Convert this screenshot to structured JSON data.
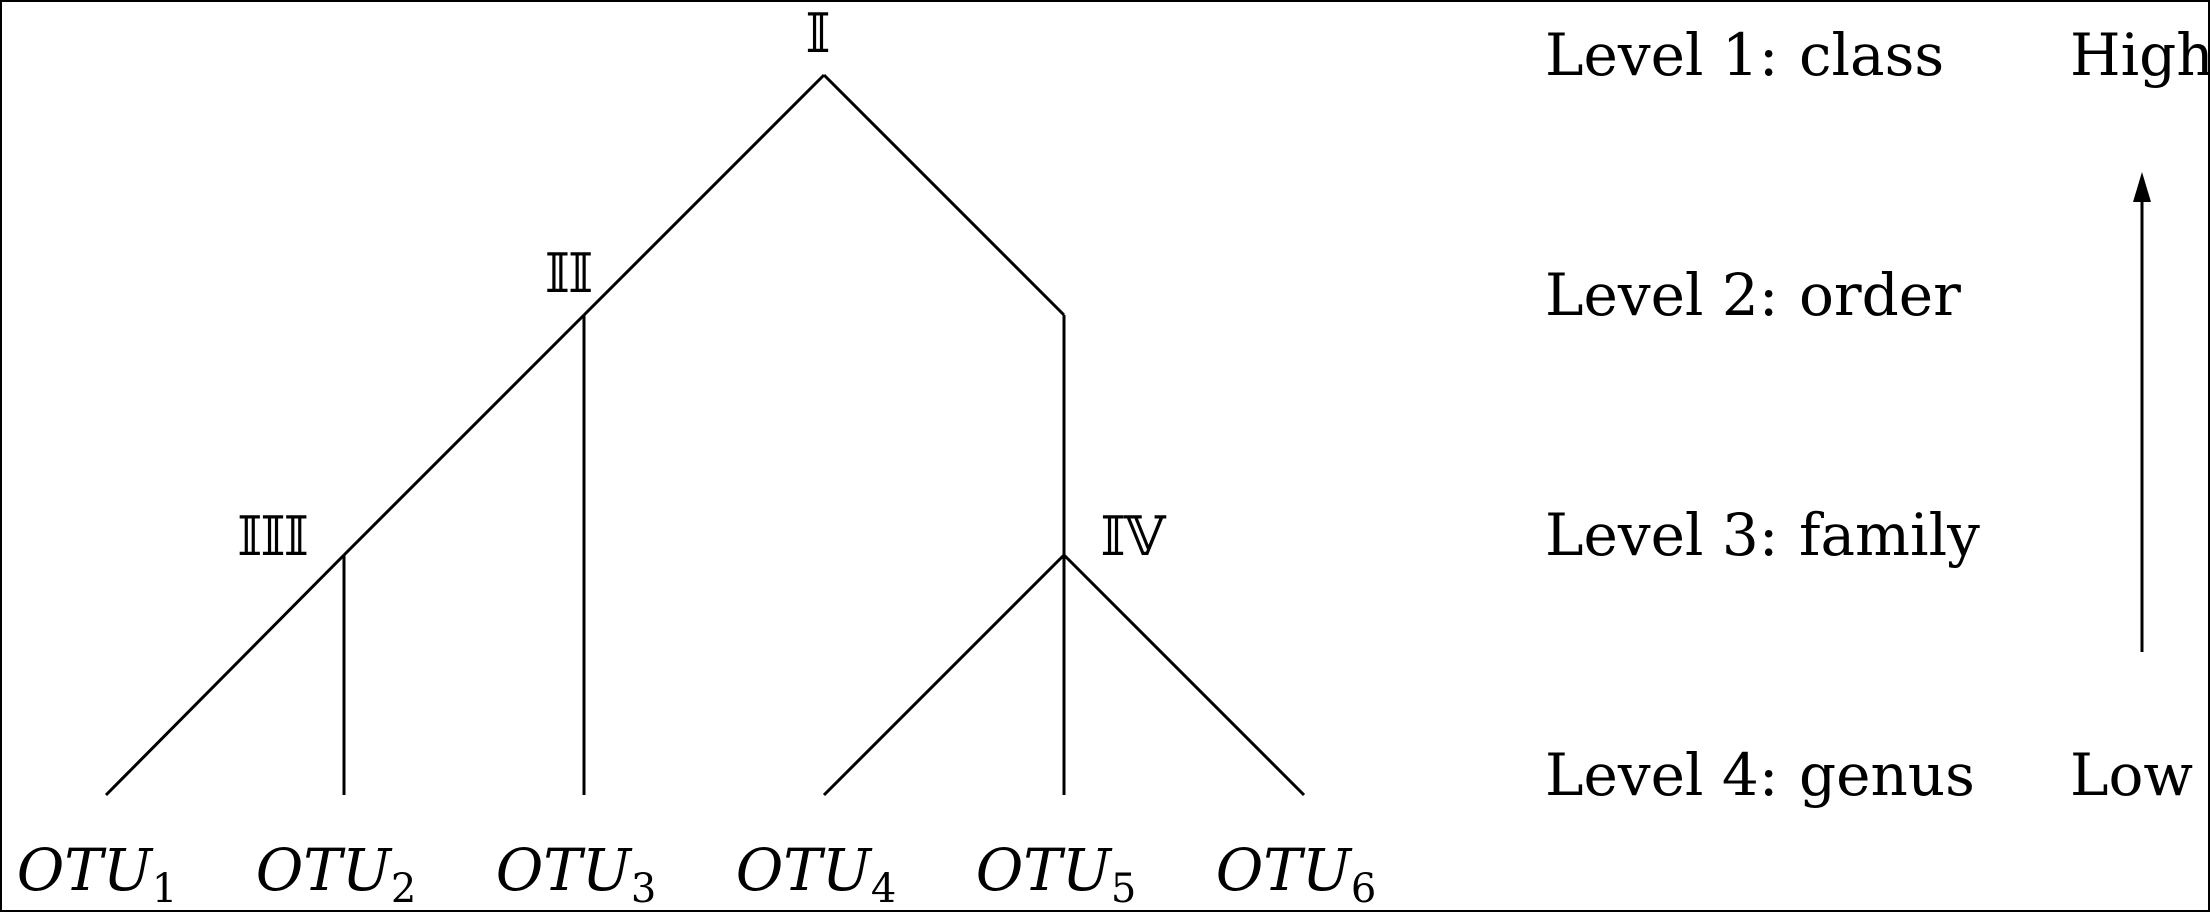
{
  "diagram": {
    "nodes": [
      {
        "id": "I",
        "label": "𝕀"
      },
      {
        "id": "II",
        "label": "𝕀𝕀"
      },
      {
        "id": "III",
        "label": "𝕀𝕀𝕀"
      },
      {
        "id": "IV",
        "label": "𝕀𝕍"
      }
    ],
    "leaves": [
      {
        "id": "otu1",
        "base": "OTU",
        "sub": "1"
      },
      {
        "id": "otu2",
        "base": "OTU",
        "sub": "2"
      },
      {
        "id": "otu3",
        "base": "OTU",
        "sub": "3"
      },
      {
        "id": "otu4",
        "base": "OTU",
        "sub": "4"
      },
      {
        "id": "otu5",
        "base": "OTU",
        "sub": "5"
      },
      {
        "id": "otu6",
        "base": "OTU",
        "sub": "6"
      }
    ],
    "edges": [
      [
        "I",
        "II"
      ],
      [
        "I",
        "IV"
      ],
      [
        "II",
        "III"
      ],
      [
        "II",
        "otu3"
      ],
      [
        "III",
        "otu1"
      ],
      [
        "III",
        "otu2"
      ],
      [
        "IV",
        "otu4"
      ],
      [
        "IV",
        "otu5"
      ],
      [
        "IV",
        "otu6"
      ]
    ]
  },
  "levels": [
    {
      "name": "Level 1:",
      "rank": "class"
    },
    {
      "name": "Level 2:",
      "rank": "order"
    },
    {
      "name": "Level 3:",
      "rank": "family"
    },
    {
      "name": "Level 4:",
      "rank": "genus"
    }
  ],
  "scale": {
    "high_label": "High",
    "low_label": "Low",
    "direction": "up"
  }
}
